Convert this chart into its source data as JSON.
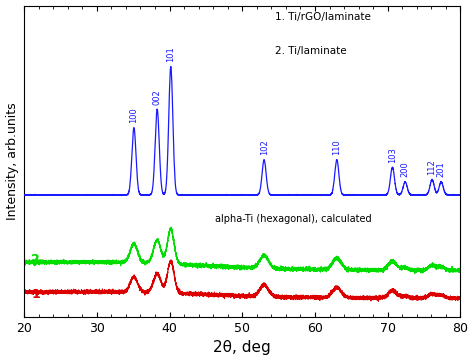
{
  "xlabel": "2θ, deg",
  "ylabel": "Intensity, arb.units",
  "xlim": [
    20,
    80
  ],
  "ylim": [
    -0.02,
    1.0
  ],
  "background_color": "#ffffff",
  "blue_color": "#1a1aff",
  "green_color": "#00dd00",
  "red_color": "#dd0000",
  "peak_positions": [
    35.1,
    38.3,
    40.17,
    53.0,
    63.0,
    70.65,
    72.4,
    76.1,
    77.35
  ],
  "peak_labels": [
    "100",
    "002",
    "101",
    "102",
    "110",
    "103",
    "200",
    "112",
    "201"
  ],
  "peak_heights_blue": [
    0.22,
    0.28,
    0.42,
    0.115,
    0.115,
    0.09,
    0.042,
    0.05,
    0.042
  ],
  "blue_baseline": 0.38,
  "blue_peak_widths": [
    0.28,
    0.28,
    0.28,
    0.28,
    0.28,
    0.28,
    0.28,
    0.28,
    0.28
  ],
  "peak_heights_green": [
    0.062,
    0.075,
    0.115,
    0.042,
    0.038,
    0.03,
    0.008,
    0.016,
    0.012
  ],
  "peak_widths_green": [
    0.5,
    0.5,
    0.45,
    0.6,
    0.6,
    0.55,
    0.5,
    0.5,
    0.5
  ],
  "green_baseline": 0.13,
  "peak_heights_red": [
    0.05,
    0.062,
    0.105,
    0.038,
    0.033,
    0.025,
    0.007,
    0.013,
    0.01
  ],
  "peak_widths_red": [
    0.5,
    0.5,
    0.45,
    0.6,
    0.6,
    0.55,
    0.5,
    0.5,
    0.5
  ],
  "red_baseline": 0.04,
  "legend_text_1": "1. Ti/rGO/laminate",
  "legend_text_2": "2. Ti/laminate",
  "annotation": "alpha-Ti (hexagonal), calculated",
  "noise_seed": 42
}
